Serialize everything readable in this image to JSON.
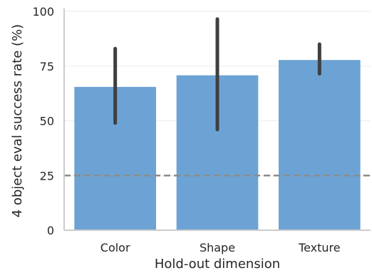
{
  "chart_data": {
    "type": "bar",
    "title": "",
    "xlabel": "Hold-out dimension",
    "ylabel": "4 object eval success rate (%)",
    "categories": [
      "Color",
      "Shape",
      "Texture"
    ],
    "values": [
      65.5,
      70.8,
      77.8
    ],
    "error_low": [
      49,
      46,
      71.5
    ],
    "error_high": [
      83,
      96.5,
      85
    ],
    "ylim": [
      0,
      100
    ],
    "yticks": [
      "0",
      "25",
      "50",
      "75",
      "100"
    ],
    "reference_line": {
      "value": 25,
      "style": "dashed",
      "color": "#8c8c8c"
    },
    "bar_color": "#6ca3d4",
    "error_color": "#3f3f3f",
    "grid": true,
    "legend": "none"
  }
}
